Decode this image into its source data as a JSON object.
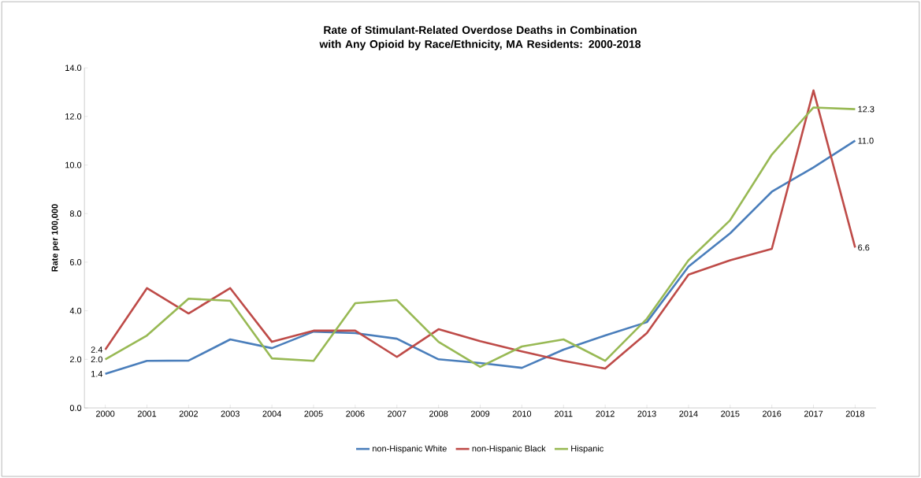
{
  "chart_data": {
    "type": "line",
    "title": "Rate of Stimulant-Related Overdose Deaths in Combination with Any Opioid by Race/Ethnicity, MA Residents: 2000-2018",
    "ylabel": "Rate per 100,000",
    "categories": [
      "2000",
      "2001",
      "2002",
      "2003",
      "2004",
      "2005",
      "2006",
      "2007",
      "2008",
      "2009",
      "2010",
      "2011",
      "2012",
      "2013",
      "2014",
      "2015",
      "2016",
      "2017",
      "2018"
    ],
    "ylim": [
      0,
      14
    ],
    "yticks": [
      {
        "value": 0,
        "label": "0.0"
      },
      {
        "value": 2,
        "label": "2.0"
      },
      {
        "value": 4,
        "label": "4.0"
      },
      {
        "value": 6,
        "label": "6.0"
      },
      {
        "value": 8,
        "label": "8.0"
      },
      {
        "value": 10,
        "label": "10.0"
      },
      {
        "value": 12,
        "label": "12.0"
      },
      {
        "value": 14,
        "label": "14.0"
      }
    ],
    "grid": false,
    "legend": "bottom",
    "marker": "none",
    "line_style": "solid",
    "series": [
      {
        "name": "non-Hispanic White",
        "color": "#4a7ebb",
        "values": [
          1.4,
          1.94,
          1.95,
          2.82,
          2.46,
          3.14,
          3.08,
          2.85,
          2.0,
          1.85,
          1.65,
          2.4,
          2.98,
          3.53,
          5.82,
          7.19,
          8.9,
          9.9,
          11.0
        ],
        "value_labels": [
          "1.4",
          null,
          null,
          null,
          null,
          null,
          null,
          null,
          null,
          null,
          null,
          null,
          null,
          null,
          null,
          null,
          null,
          null,
          "11.0"
        ]
      },
      {
        "name": "non-Hispanic Black",
        "color": "#be4b48",
        "values": [
          2.4,
          4.93,
          3.89,
          4.93,
          2.72,
          3.18,
          3.18,
          2.1,
          3.24,
          2.75,
          2.33,
          1.94,
          1.62,
          3.08,
          5.49,
          6.08,
          6.55,
          13.07,
          6.6
        ],
        "value_labels": [
          "2.4",
          null,
          null,
          null,
          null,
          null,
          null,
          null,
          null,
          null,
          null,
          null,
          null,
          null,
          null,
          null,
          null,
          null,
          "6.6"
        ]
      },
      {
        "name": "Hispanic",
        "color": "#98b954",
        "values": [
          2.0,
          2.98,
          4.5,
          4.41,
          2.04,
          1.94,
          4.31,
          4.44,
          2.72,
          1.69,
          2.53,
          2.82,
          1.94,
          3.67,
          6.08,
          7.73,
          10.43,
          12.37,
          12.3
        ],
        "value_labels": [
          "2.0",
          null,
          null,
          null,
          null,
          null,
          null,
          null,
          null,
          null,
          null,
          null,
          null,
          null,
          null,
          null,
          null,
          null,
          "12.3"
        ]
      }
    ]
  }
}
